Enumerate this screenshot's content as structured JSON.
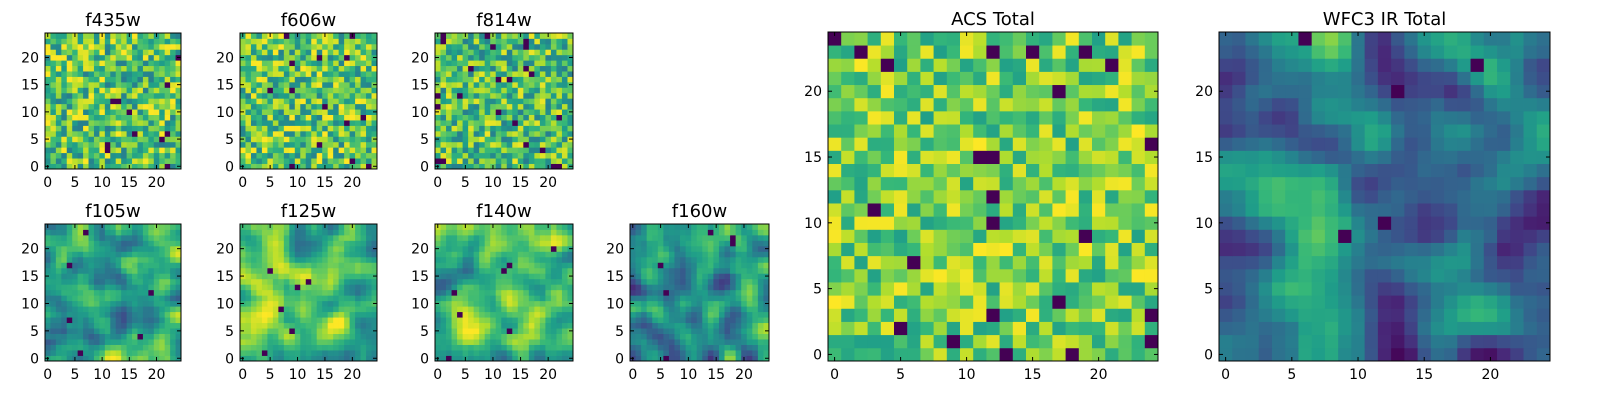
{
  "chart_data": [
    {
      "type": "heatmap",
      "title": "f435w",
      "xticks": [
        0,
        5,
        10,
        15,
        20
      ],
      "yticks": [
        0,
        5,
        10,
        15,
        20
      ],
      "xlim": [
        -0.5,
        24.5
      ],
      "ylim": [
        -0.5,
        24.5
      ],
      "grid": [
        25,
        25
      ],
      "colormap": "viridis",
      "pattern": "noise",
      "seed": 11,
      "center_level": 0.72,
      "spread": 0.3
    },
    {
      "type": "heatmap",
      "title": "f606w",
      "xticks": [
        0,
        5,
        10,
        15,
        20
      ],
      "yticks": [
        0,
        5,
        10,
        15,
        20
      ],
      "xlim": [
        -0.5,
        24.5
      ],
      "ylim": [
        -0.5,
        24.5
      ],
      "grid": [
        25,
        25
      ],
      "colormap": "viridis",
      "pattern": "noise",
      "seed": 23,
      "center_level": 0.74,
      "spread": 0.3
    },
    {
      "type": "heatmap",
      "title": "f814w",
      "xticks": [
        0,
        5,
        10,
        15,
        20
      ],
      "yticks": [
        0,
        5,
        10,
        15,
        20
      ],
      "xlim": [
        -0.5,
        24.5
      ],
      "ylim": [
        -0.5,
        24.5
      ],
      "grid": [
        25,
        25
      ],
      "colormap": "viridis",
      "pattern": "noise",
      "seed": 37,
      "center_level": 0.7,
      "spread": 0.28
    },
    {
      "type": "heatmap",
      "title": "f105w",
      "xticks": [
        0,
        5,
        10,
        15,
        20
      ],
      "yticks": [
        0,
        5,
        10,
        15,
        20
      ],
      "xlim": [
        -0.5,
        24.5
      ],
      "ylim": [
        -0.5,
        24.5
      ],
      "grid": [
        25,
        25
      ],
      "colormap": "viridis",
      "pattern": "smooth",
      "seed": 41,
      "center_level": 0.62,
      "spread": 0.38
    },
    {
      "type": "heatmap",
      "title": "f125w",
      "xticks": [
        0,
        5,
        10,
        15,
        20
      ],
      "yticks": [
        0,
        5,
        10,
        15,
        20
      ],
      "xlim": [
        -0.5,
        24.5
      ],
      "ylim": [
        -0.5,
        24.5
      ],
      "grid": [
        25,
        25
      ],
      "colormap": "viridis",
      "pattern": "smooth",
      "seed": 53,
      "center_level": 0.7,
      "spread": 0.36
    },
    {
      "type": "heatmap",
      "title": "f140w",
      "xticks": [
        0,
        5,
        10,
        15,
        20
      ],
      "yticks": [
        0,
        5,
        10,
        15,
        20
      ],
      "xlim": [
        -0.5,
        24.5
      ],
      "ylim": [
        -0.5,
        24.5
      ],
      "grid": [
        25,
        25
      ],
      "colormap": "viridis",
      "pattern": "smooth",
      "seed": 67,
      "center_level": 0.66,
      "spread": 0.36
    },
    {
      "type": "heatmap",
      "title": "f160w",
      "xticks": [
        0,
        5,
        10,
        15,
        20
      ],
      "yticks": [
        0,
        5,
        10,
        15,
        20
      ],
      "xlim": [
        -0.5,
        24.5
      ],
      "ylim": [
        -0.5,
        24.5
      ],
      "grid": [
        25,
        25
      ],
      "colormap": "viridis",
      "pattern": "smooth",
      "seed": 79,
      "center_level": 0.5,
      "spread": 0.38
    },
    {
      "type": "heatmap",
      "title": "ACS Total",
      "xticks": [
        0,
        5,
        10,
        15,
        20
      ],
      "yticks": [
        0,
        5,
        10,
        15,
        20
      ],
      "xlim": [
        -0.5,
        24.5
      ],
      "ylim": [
        -0.5,
        24.5
      ],
      "grid": [
        25,
        25
      ],
      "colormap": "viridis",
      "pattern": "noise",
      "seed": 97,
      "center_level": 0.78,
      "spread": 0.22
    },
    {
      "type": "heatmap",
      "title": "WFC3 IR Total",
      "xticks": [
        0,
        5,
        10,
        15,
        20
      ],
      "yticks": [
        0,
        5,
        10,
        15,
        20
      ],
      "xlim": [
        -0.5,
        24.5
      ],
      "ylim": [
        -0.5,
        24.5
      ],
      "grid": [
        25,
        25
      ],
      "colormap": "viridis",
      "pattern": "smooth",
      "seed": 101,
      "center_level": 0.42,
      "spread": 0.4
    }
  ]
}
